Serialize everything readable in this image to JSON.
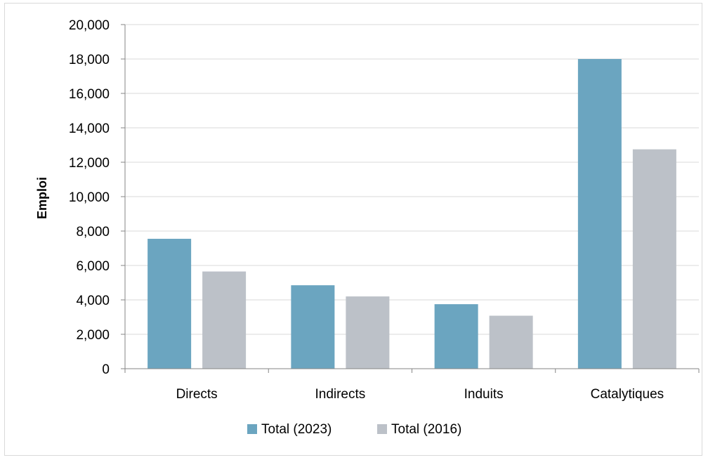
{
  "chart_data": {
    "type": "bar",
    "title": "",
    "xlabel": "",
    "ylabel": "Emploi",
    "categories": [
      "Directs",
      "Indirects",
      "Induits",
      "Catalytiques"
    ],
    "series": [
      {
        "name": "Total (2023)",
        "color": "#6ba5c0",
        "values": [
          7550,
          4850,
          3750,
          18000
        ]
      },
      {
        "name": "Total (2016)",
        "color": "#bcc1c8",
        "values": [
          5650,
          4200,
          3080,
          12750
        ]
      }
    ],
    "ylim": [
      0,
      20000
    ],
    "yticks": [
      0,
      2000,
      4000,
      6000,
      8000,
      10000,
      12000,
      14000,
      16000,
      18000,
      20000
    ],
    "ytick_labels": [
      "0",
      "2,000",
      "4,000",
      "6,000",
      "8,000",
      "10,000",
      "12,000",
      "14,000",
      "16,000",
      "18,000",
      "20,000"
    ],
    "grid": true,
    "legend_position": "bottom"
  }
}
